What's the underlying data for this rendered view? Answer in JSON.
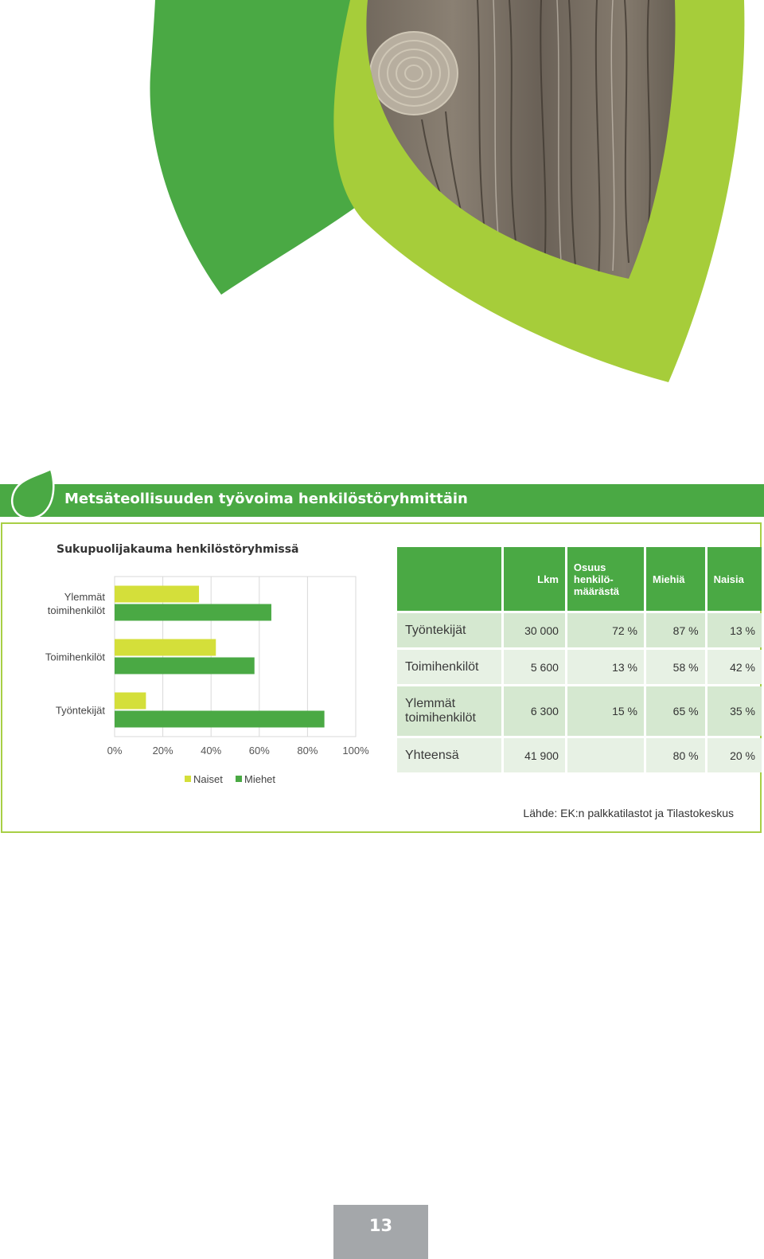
{
  "section": {
    "title": "Metsäteollisuuden työvoima henkilöstöryhmittäin",
    "accent": "#4aa944",
    "accent_light": "#a8cf45"
  },
  "chart_data": {
    "type": "bar",
    "orientation": "horizontal",
    "title": "Sukupuolijakauma henkilöstöryhmissä",
    "categories": [
      "Ylemmät toimihenkilöt",
      "Toimihenkilöt",
      "Työntekijät"
    ],
    "category_lines": [
      [
        "Ylemmät",
        "toimihenkilöt"
      ],
      [
        "Toimihenkilöt"
      ],
      [
        "Työntekijät"
      ]
    ],
    "series": [
      {
        "name": "Naiset",
        "color": "#d4df3a",
        "values": [
          35,
          42,
          13
        ]
      },
      {
        "name": "Miehet",
        "color": "#4aa944",
        "values": [
          65,
          58,
          87
        ]
      }
    ],
    "xlim": [
      0,
      100
    ],
    "xticks": [
      "0%",
      "20%",
      "40%",
      "60%",
      "80%",
      "100%"
    ],
    "grid": true,
    "legend": "bottom"
  },
  "table": {
    "headers": [
      [
        ""
      ],
      [
        "Lkm"
      ],
      [
        "Osuus",
        "henkilö-",
        "määrästä"
      ],
      [
        "Miehiä"
      ],
      [
        "Naisia"
      ]
    ],
    "rows": [
      {
        "label": [
          "Työntekijät"
        ],
        "lkm": "30 000",
        "osuus": "72 %",
        "miehia": "87 %",
        "naisia": "13 %"
      },
      {
        "label": [
          "Toimihenkilöt"
        ],
        "lkm": "5 600",
        "osuus": "13 %",
        "miehia": "58 %",
        "naisia": "42 %"
      },
      {
        "label": [
          "Ylemmät",
          "toimihenkilöt"
        ],
        "lkm": "6 300",
        "osuus": "15 %",
        "miehia": "65 %",
        "naisia": "35 %"
      },
      {
        "label": [
          "Yhteensä"
        ],
        "lkm": "41 900",
        "osuus": "",
        "miehia": "80 %",
        "naisia": "20 %"
      }
    ]
  },
  "source": "Lähde: EK:n palkkatilastot ja Tilastokeskus",
  "page_number": "13"
}
